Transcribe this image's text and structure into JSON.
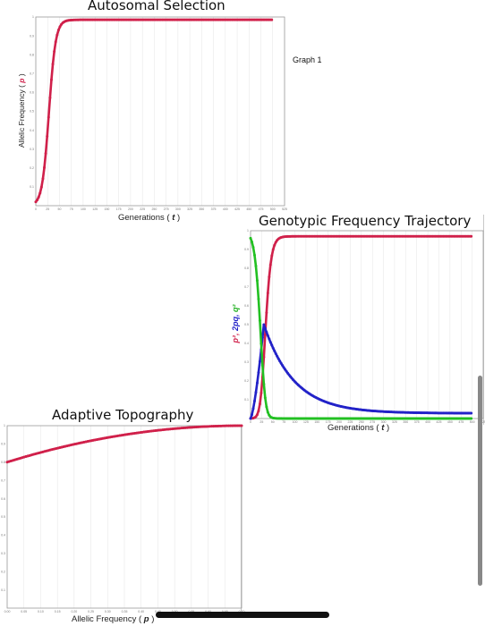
{
  "page": {
    "graph_note": "Graph 1"
  },
  "colors": {
    "red": "#d0204a",
    "blue": "#2222c8",
    "green": "#22c022",
    "black": "#111111"
  },
  "chart_data": [
    {
      "id": "autosomal",
      "type": "scatter",
      "title": "Autosomal Selection",
      "xlabel_text": "Generations (",
      "xlabel_var": "t",
      "xlabel_close": ")",
      "ylabel_text": "Allelic Frequency (",
      "ylabel_var": "p",
      "ylabel_close": ")",
      "xlim": [
        0,
        525
      ],
      "ylim": [
        0,
        1
      ],
      "x_ticks": [
        "0",
        "25",
        "50",
        "75",
        "100",
        "125",
        "150",
        "175",
        "200",
        "225",
        "250",
        "275",
        "300",
        "325",
        "350",
        "375",
        "400",
        "425",
        "450",
        "475",
        "500",
        "525"
      ],
      "y_ticks": [
        "0.1",
        "0.2",
        "0.3",
        "0.4",
        "0.5",
        "0.6",
        "0.7",
        "0.8",
        "0.9",
        "1"
      ],
      "series": [
        {
          "color": "#d0204a",
          "model": "logistic",
          "p0": 0.02,
          "r": 0.14,
          "cap": 0.985,
          "x": [
            0,
            500
          ],
          "step": 3
        }
      ]
    },
    {
      "id": "genotypic",
      "type": "scatter",
      "title": "Genotypic Frequency Trajectory",
      "xlabel_text": "Generations (",
      "xlabel_var": "t",
      "xlabel_close": ")",
      "ylabel_parts": [
        "p²,",
        "2pq,",
        "q²"
      ],
      "xlim": [
        0,
        525
      ],
      "ylim": [
        0,
        1
      ],
      "x_ticks": [
        "0",
        "25",
        "50",
        "75",
        "100",
        "125",
        "150",
        "175",
        "200",
        "225",
        "250",
        "275",
        "300",
        "325",
        "350",
        "375",
        "400",
        "425",
        "450",
        "475",
        "500",
        "525"
      ],
      "y_ticks": [
        "0.1",
        "0.2",
        "0.3",
        "0.4",
        "0.5",
        "0.6",
        "0.7",
        "0.8",
        "0.9",
        "1"
      ],
      "series": [
        {
          "color": "#d0204a",
          "model": "p2",
          "p0": 0.02,
          "r": 0.14,
          "cap": 0.985,
          "x": [
            0,
            500
          ],
          "step": 3
        },
        {
          "color": "#2222c8",
          "model": "twopq",
          "p0": 0.02,
          "r": 0.14,
          "cap": 0.985,
          "x": [
            0,
            500
          ],
          "step": 3
        },
        {
          "color": "#22c022",
          "model": "q2",
          "p0": 0.02,
          "r": 0.14,
          "cap": 0.985,
          "x": [
            0,
            500
          ],
          "step": 3
        }
      ]
    },
    {
      "id": "topography",
      "type": "scatter",
      "title": "Adaptive Topography",
      "xlabel_text": "Allelic Frequency (",
      "xlabel_var": "p",
      "xlabel_close": ")",
      "xlim": [
        0,
        1
      ],
      "ylim": [
        0,
        1
      ],
      "x_ticks": [
        "0.00",
        "0.05",
        "0.10",
        "0.15",
        "0.20",
        "0.25",
        "0.30",
        "0.35",
        "0.40",
        "0.45",
        "0.50",
        "0.55",
        "0.60",
        "0.65",
        "0.70"
      ],
      "y_ticks": [
        "0.1",
        "0.2",
        "0.3",
        "0.4",
        "0.5",
        "0.6",
        "0.7",
        "0.8",
        "0.9",
        "1"
      ],
      "series": [
        {
          "color": "#d0204a",
          "model": "topo",
          "y0": 0.8,
          "x": [
            0,
            1
          ],
          "step": 0.008
        }
      ]
    }
  ]
}
